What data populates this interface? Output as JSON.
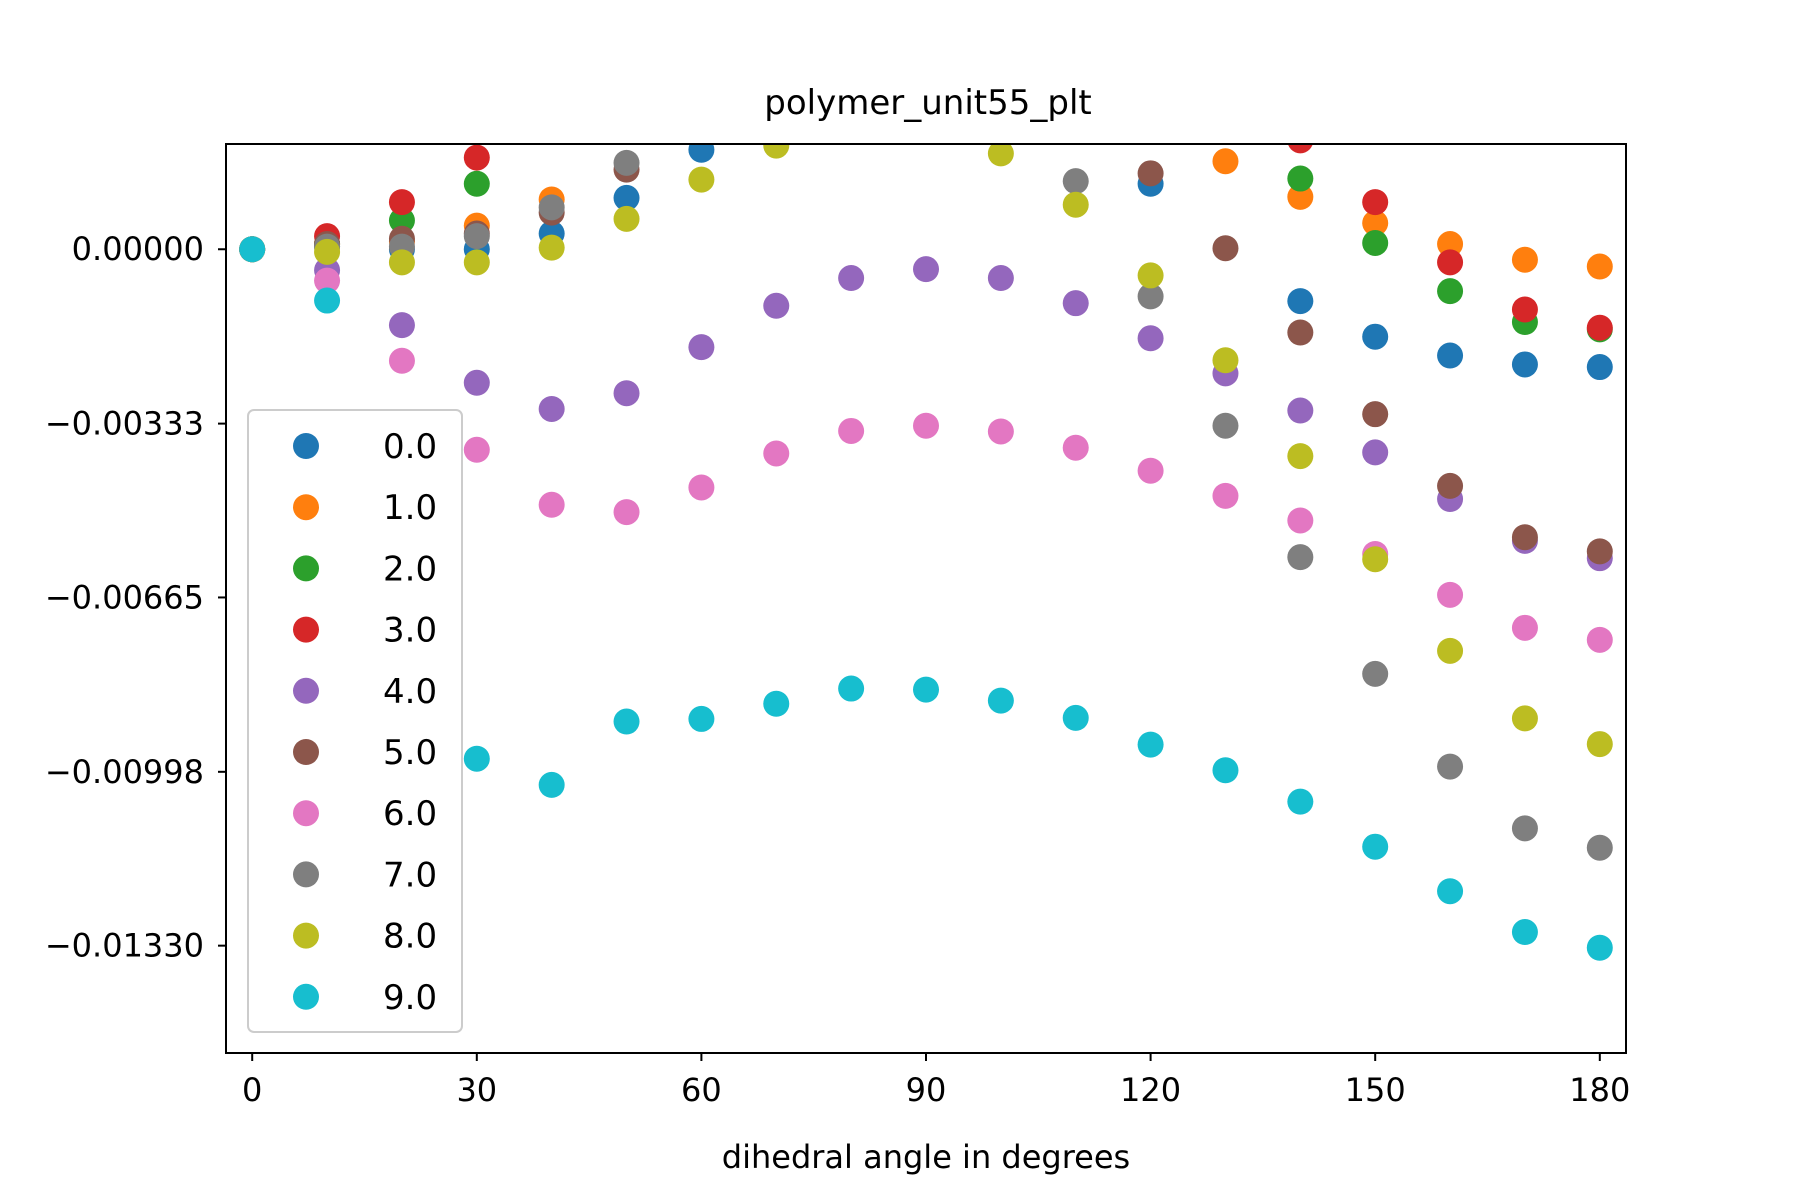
{
  "chart_data": {
    "type": "scatter",
    "title": "polymer_unit55_plt",
    "xlabel": "dihedral angle in degrees",
    "ylabel": "",
    "xlim": [
      -3.5,
      183.5
    ],
    "ylim": [
      -0.01535,
      0.00201
    ],
    "xticks": [
      0,
      30,
      60,
      90,
      120,
      150,
      180
    ],
    "yticks": [
      0.0,
      -0.00333,
      -0.00665,
      -0.00998,
      -0.0133
    ],
    "ytick_labels": [
      "0.00000",
      "−0.00333",
      "−0.00665",
      "−0.00998",
      "−0.01330"
    ],
    "grid": false,
    "legend_position": "lower-left",
    "x": [
      0,
      10,
      20,
      30,
      40,
      50,
      60,
      70,
      80,
      90,
      100,
      110,
      120,
      130,
      140,
      150,
      160,
      170,
      180
    ],
    "series": [
      {
        "name": "0.0",
        "color": "#1f77b4",
        "values": [
          0.0,
          5e-05,
          0.0,
          0.0,
          0.0003,
          0.00098,
          0.0019,
          null,
          null,
          null,
          null,
          null,
          0.00125,
          null,
          -0.00099,
          -0.00167,
          -0.00203,
          -0.0022,
          -0.00225
        ]
      },
      {
        "name": "1.0",
        "color": "#ff7f0e",
        "values": [
          0.0,
          0.0001,
          0.00015,
          0.00045,
          0.00095,
          null,
          null,
          null,
          null,
          null,
          null,
          null,
          null,
          0.00168,
          0.001,
          0.0005,
          0.0001,
          -0.0002,
          -0.00033
        ]
      },
      {
        "name": "2.0",
        "color": "#2ca02c",
        "values": [
          0.0,
          0.0001,
          0.00055,
          0.00125,
          null,
          null,
          null,
          null,
          null,
          null,
          null,
          null,
          null,
          null,
          0.00135,
          0.00012,
          -0.0008,
          -0.00139,
          -0.00153
        ]
      },
      {
        "name": "3.0",
        "color": "#d62728",
        "values": [
          0.0,
          0.00025,
          0.0009,
          0.00175,
          null,
          null,
          null,
          null,
          null,
          null,
          null,
          null,
          null,
          null,
          0.00208,
          0.0009,
          -0.00025,
          -0.00115,
          -0.0015
        ]
      },
      {
        "name": "4.0",
        "color": "#9467bd",
        "values": [
          0.0,
          -0.0004,
          -0.00145,
          -0.00255,
          -0.00305,
          -0.00275,
          -0.00187,
          -0.00108,
          -0.00055,
          -0.00038,
          -0.00055,
          -0.00103,
          -0.0017,
          -0.00237,
          -0.00308,
          -0.00388,
          -0.00477,
          -0.00557,
          -0.0059
        ]
      },
      {
        "name": "5.0",
        "color": "#8c564b",
        "values": [
          0.0,
          0.0001,
          0.0002,
          0.0003,
          0.0007,
          0.00152,
          null,
          null,
          null,
          null,
          null,
          null,
          0.00145,
          2e-05,
          -0.00159,
          -0.00315,
          -0.00452,
          -0.0055,
          -0.00577
        ]
      },
      {
        "name": "6.0",
        "color": "#e377c2",
        "values": [
          0.0,
          -0.0006,
          -0.00213,
          -0.00383,
          -0.00488,
          -0.00502,
          -0.00455,
          -0.0039,
          -0.00347,
          -0.00337,
          -0.00348,
          -0.00379,
          -0.00423,
          -0.00471,
          -0.00518,
          -0.00582,
          -0.0066,
          -0.00723,
          -0.00746
        ]
      },
      {
        "name": "7.0",
        "color": "#7f7f7f",
        "values": [
          0.0,
          5e-05,
          5e-05,
          0.00025,
          0.0008,
          0.00165,
          null,
          null,
          null,
          null,
          null,
          0.0013,
          -0.0009,
          -0.00337,
          -0.00588,
          -0.00811,
          -0.00988,
          -0.01106,
          -0.01143
        ]
      },
      {
        "name": "8.0",
        "color": "#bcbd22",
        "values": [
          0.0,
          -5e-05,
          -0.00025,
          -0.00025,
          3e-05,
          0.00058,
          0.00133,
          0.00198,
          null,
          null,
          0.00183,
          0.00085,
          -0.0005,
          -0.00212,
          -0.00395,
          -0.00592,
          -0.00767,
          -0.00896,
          -0.00945
        ]
      },
      {
        "name": "9.0",
        "color": "#17becf",
        "values": [
          0.0,
          -0.00098,
          null,
          -0.00973,
          -0.01023,
          -0.00902,
          -0.00897,
          -0.00868,
          -0.00839,
          -0.00841,
          -0.00862,
          -0.00895,
          -0.00946,
          -0.00995,
          -0.01055,
          -0.01141,
          -0.01226,
          -0.01304,
          -0.01334
        ]
      }
    ]
  }
}
